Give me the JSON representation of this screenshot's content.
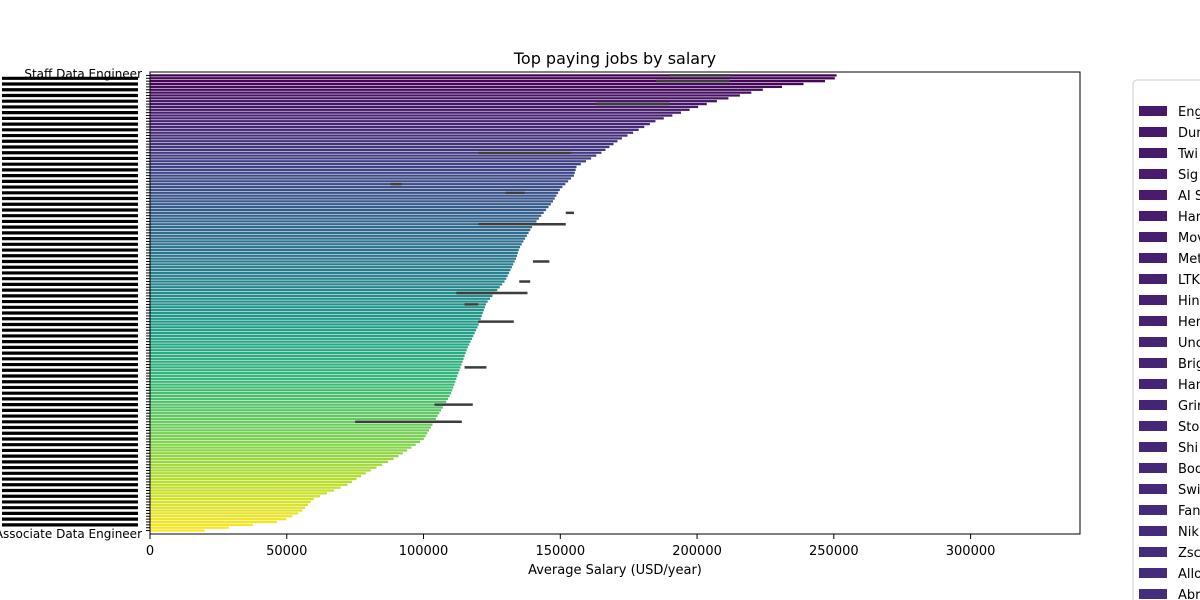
{
  "chart_data": {
    "type": "bar",
    "orientation": "horizontal",
    "title": "Top paying jobs by salary",
    "xlabel": "Average Salary (USD/year)",
    "ylabel": "",
    "xlim": [
      0,
      340000
    ],
    "xticks": [
      0,
      50000,
      100000,
      150000,
      200000,
      250000,
      300000
    ],
    "xtick_labels": [
      "0",
      "50000",
      "100000",
      "150000",
      "200000",
      "250000",
      "300000"
    ],
    "grid": false,
    "legend_position": "right (outside plot, clipped)",
    "colormap": "viridis",
    "first_category": "Staff Data Engineer",
    "last_category": "Associate Data Engineer",
    "approx_bar_count": 160,
    "envelope": {
      "note": "approximate maximum average salary per rank (bars sorted descending)",
      "rank_fraction": [
        0.0,
        0.01,
        0.03,
        0.06,
        0.08,
        0.1,
        0.14,
        0.17,
        0.2,
        0.22,
        0.25,
        0.28,
        0.33,
        0.38,
        0.4,
        0.45,
        0.5,
        0.55,
        0.6,
        0.65,
        0.7,
        0.75,
        0.8,
        0.84,
        0.87,
        0.9,
        0.93,
        0.96,
        0.98,
        1.0
      ],
      "salary": [
        251000,
        250000,
        225000,
        205000,
        195000,
        185000,
        172000,
        165000,
        156000,
        155000,
        150000,
        147000,
        140000,
        135000,
        134000,
        130000,
        123000,
        120000,
        116000,
        113000,
        110000,
        105000,
        100000,
        90000,
        80000,
        72000,
        60000,
        55000,
        48000,
        20000
      ]
    },
    "error_bars": [
      {
        "rank": 0,
        "low": 190000,
        "high": 212000
      },
      {
        "rank": 2,
        "low": 185000,
        "high": 212000
      },
      {
        "rank": 10,
        "low": 163000,
        "high": 190000
      },
      {
        "rank": 27,
        "low": 120000,
        "high": 154000
      },
      {
        "rank": 38,
        "low": 88000,
        "high": 92000
      },
      {
        "rank": 41,
        "low": 130000,
        "high": 137000
      },
      {
        "rank": 48,
        "low": 152000,
        "high": 155000
      },
      {
        "rank": 52,
        "low": 120000,
        "high": 152000
      },
      {
        "rank": 65,
        "low": 140000,
        "high": 146000
      },
      {
        "rank": 72,
        "low": 135000,
        "high": 139000
      },
      {
        "rank": 76,
        "low": 112000,
        "high": 138000
      },
      {
        "rank": 80,
        "low": 115000,
        "high": 120000
      },
      {
        "rank": 86,
        "low": 120000,
        "high": 133000
      },
      {
        "rank": 102,
        "low": 115000,
        "high": 123000
      },
      {
        "rank": 115,
        "low": 104000,
        "high": 118000
      },
      {
        "rank": 121,
        "low": 75000,
        "high": 114000
      }
    ]
  },
  "legend": {
    "items": [
      {
        "label": "Eng",
        "color": "#48186a"
      },
      {
        "label": "Dun",
        "color": "#48186a"
      },
      {
        "label": "Twi",
        "color": "#48186a"
      },
      {
        "label": "Sig",
        "color": "#481b6d"
      },
      {
        "label": "AI S",
        "color": "#481b6d"
      },
      {
        "label": "Har",
        "color": "#481c6e"
      },
      {
        "label": "Mov",
        "color": "#481c6e"
      },
      {
        "label": "Met",
        "color": "#471e70"
      },
      {
        "label": "LTK",
        "color": "#471e70"
      },
      {
        "label": "Hin",
        "color": "#472072"
      },
      {
        "label": "Her",
        "color": "#472072"
      },
      {
        "label": "Unc",
        "color": "#472374"
      },
      {
        "label": "Brig",
        "color": "#472374"
      },
      {
        "label": "Han",
        "color": "#462475"
      },
      {
        "label": "Grir",
        "color": "#462475"
      },
      {
        "label": "Sto",
        "color": "#462677"
      },
      {
        "label": "Shi",
        "color": "#462677"
      },
      {
        "label": "Boo",
        "color": "#452878"
      },
      {
        "label": "Swi",
        "color": "#452878"
      },
      {
        "label": "Fan",
        "color": "#45297a"
      },
      {
        "label": "Nik",
        "color": "#45297a"
      },
      {
        "label": "Zsc",
        "color": "#442b7b"
      },
      {
        "label": "Allo",
        "color": "#442b7b"
      },
      {
        "label": "Abr",
        "color": "#432d7c"
      }
    ]
  }
}
